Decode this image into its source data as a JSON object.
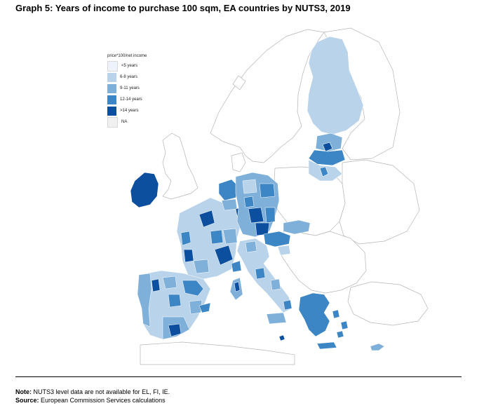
{
  "title": "Graph 5: Years of income to purchase 100 sqm, EA countries by NUTS3, 2019",
  "legend": {
    "title": "price*100/net income",
    "items": [
      {
        "label": "<5 years",
        "color": "#eef3fb"
      },
      {
        "label": "6-8 years",
        "color": "#b9d3ea"
      },
      {
        "label": "9-11 years",
        "color": "#7fb0da"
      },
      {
        "label": "12-14 years",
        "color": "#3d86c6"
      },
      {
        "label": ">14 years",
        "color": "#0b4f9e"
      },
      {
        "label": "NA",
        "color": "#f0f0f0"
      }
    ]
  },
  "notes": {
    "note_label": "Note:",
    "note_text": " NUTS3 level data are not available for EL, FI, IE.",
    "source_label": "Source:",
    "source_text": " European Commission Services calculations"
  },
  "map_regions": [
    {
      "name": "Finland",
      "category": "6-8 years"
    },
    {
      "name": "Ireland",
      "category": ">14 years"
    },
    {
      "name": "Greece",
      "category": "12-14 years"
    },
    {
      "name": "Cyprus",
      "category": "9-11 years"
    },
    {
      "name": "Spain",
      "category": "9-11 years"
    },
    {
      "name": "Portugal",
      "category": "9-11 years"
    },
    {
      "name": "France",
      "category": "6-8 years"
    },
    {
      "name": "Italy",
      "category": "6-8 years"
    },
    {
      "name": "Germany",
      "category": "9-11 years"
    },
    {
      "name": "Austria",
      "category": "12-14 years"
    },
    {
      "name": "Slovakia",
      "category": "9-11 years"
    },
    {
      "name": "Estonia",
      "category": "9-11 years"
    },
    {
      "name": "Latvia",
      "category": "12-14 years"
    },
    {
      "name": "Lithuania",
      "category": "6-8 years"
    },
    {
      "name": "Netherlands",
      "category": "12-14 years"
    },
    {
      "name": "Belgium",
      "category": "9-11 years"
    },
    {
      "name": "Luxembourg",
      "category": ">14 years"
    },
    {
      "name": "Slovenia",
      "category": "6-8 years"
    },
    {
      "name": "Malta",
      "category": ">14 years"
    }
  ]
}
